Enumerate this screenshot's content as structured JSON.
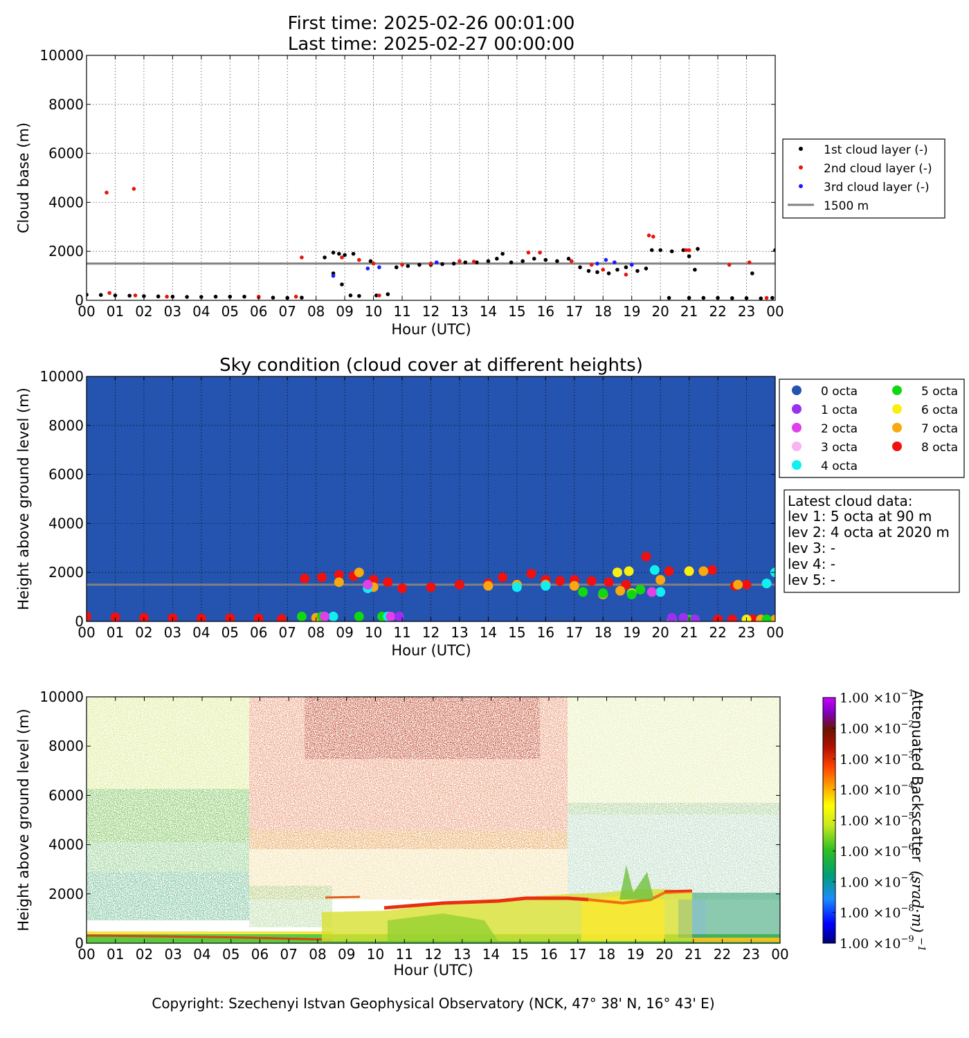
{
  "header": {
    "line1": "First time: 2025-02-26 00:01:00",
    "line2": "Last time: 2025-02-27 00:00:00"
  },
  "colors": {
    "layer1": "#000000",
    "layer2": "#e8140c",
    "layer3": "#1a1aff",
    "ref_line": "#808080",
    "sky_background": "#2453b0"
  },
  "panel1": {
    "ylabel": "Cloud base (m)",
    "xlabel": "Hour (UTC)",
    "legend": [
      "1st cloud layer (-)",
      "2nd cloud layer (-)",
      "3rd cloud layer (-)",
      "1500 m"
    ]
  },
  "panel2": {
    "title": "Sky condition (cloud cover at different heights)",
    "ylabel": "Height above ground level (m)",
    "xlabel": "Hour (UTC)",
    "legend": [
      {
        "label": "0 octa",
        "color": "#2453b0"
      },
      {
        "label": "1 octa",
        "color": "#9b30f0"
      },
      {
        "label": "2 octa",
        "color": "#e040e8"
      },
      {
        "label": "3 octa",
        "color": "#f8b4f0"
      },
      {
        "label": "4 octa",
        "color": "#10f0f0"
      },
      {
        "label": "5 octa",
        "color": "#10d810"
      },
      {
        "label": "6 octa",
        "color": "#f8f010"
      },
      {
        "label": "7 octa",
        "color": "#f8a810"
      },
      {
        "label": "8 octa",
        "color": "#f01010"
      }
    ],
    "latest": {
      "title": "Latest cloud data:",
      "lines": [
        "lev 1: 5 octa at 90 m",
        "lev 2: 4 octa at 2020 m",
        "lev 3: -",
        "lev 4: -",
        "lev 5: -"
      ]
    }
  },
  "panel3": {
    "ylabel": "Height above ground level (m)",
    "xlabel": "Hour (UTC)",
    "colorbar_label": "Attenuated Backscatter",
    "colorbar_unit_base": "(srad·m)",
    "colorbar_unit_exp": "−1",
    "colorbar_ticks": [
      {
        "mant": "1.00",
        "exp": "−1"
      },
      {
        "mant": "1.00",
        "exp": "−2"
      },
      {
        "mant": "1.00",
        "exp": "−3"
      },
      {
        "mant": "1.00",
        "exp": "−4"
      },
      {
        "mant": "1.00",
        "exp": "−5"
      },
      {
        "mant": "1.00",
        "exp": "−6"
      },
      {
        "mant": "1.00",
        "exp": "−7"
      },
      {
        "mant": "1.00",
        "exp": "−8"
      },
      {
        "mant": "1.00",
        "exp": "−9"
      }
    ]
  },
  "footer": {
    "copyright": "Copyright: Szechenyi Istvan Geophysical Observatory (NCK, 47° 38' N, 16° 43' E)"
  },
  "chart_data": [
    {
      "type": "scatter",
      "title": "",
      "xlabel": "Hour (UTC)",
      "ylabel": "Cloud base (m)",
      "xlim": [
        0,
        24
      ],
      "ylim": [
        0,
        10000
      ],
      "x_tick_labels": [
        "00",
        "01",
        "02",
        "03",
        "04",
        "05",
        "06",
        "07",
        "08",
        "09",
        "10",
        "11",
        "12",
        "13",
        "14",
        "15",
        "16",
        "17",
        "18",
        "19",
        "20",
        "21",
        "22",
        "23",
        "00"
      ],
      "y_ticks": [
        0,
        2000,
        4000,
        6000,
        8000,
        10000
      ],
      "grid": true,
      "legend_position": "right",
      "reference_line": {
        "name": "1500 m",
        "y": 1500
      },
      "series": [
        {
          "name": "1st cloud layer (-)",
          "points": [
            [
              0.0,
              230
            ],
            [
              0.5,
              220
            ],
            [
              1.0,
              200
            ],
            [
              1.5,
              190
            ],
            [
              2.0,
              170
            ],
            [
              2.5,
              160
            ],
            [
              3.0,
              150
            ],
            [
              3.5,
              140
            ],
            [
              4.0,
              140
            ],
            [
              4.5,
              150
            ],
            [
              5.0,
              150
            ],
            [
              5.5,
              150
            ],
            [
              6.0,
              130
            ],
            [
              6.5,
              110
            ],
            [
              7.0,
              100
            ],
            [
              7.5,
              110
            ],
            [
              8.3,
              1750
            ],
            [
              8.6,
              1950
            ],
            [
              8.8,
              1900
            ],
            [
              9.0,
              1850
            ],
            [
              9.3,
              1900
            ],
            [
              8.6,
              1100
            ],
            [
              8.9,
              650
            ],
            [
              9.2,
              200
            ],
            [
              9.5,
              180
            ],
            [
              9.9,
              1600
            ],
            [
              10.1,
              200
            ],
            [
              10.5,
              250
            ],
            [
              10.8,
              1350
            ],
            [
              11.2,
              1400
            ],
            [
              11.6,
              1450
            ],
            [
              12.0,
              1450
            ],
            [
              12.4,
              1480
            ],
            [
              12.8,
              1500
            ],
            [
              13.2,
              1550
            ],
            [
              13.6,
              1550
            ],
            [
              14.0,
              1600
            ],
            [
              14.3,
              1700
            ],
            [
              14.5,
              1900
            ],
            [
              14.8,
              1550
            ],
            [
              15.2,
              1600
            ],
            [
              15.6,
              1700
            ],
            [
              16.0,
              1650
            ],
            [
              16.4,
              1600
            ],
            [
              16.8,
              1700
            ],
            [
              17.2,
              1350
            ],
            [
              17.5,
              1200
            ],
            [
              17.8,
              1150
            ],
            [
              18.2,
              1100
            ],
            [
              18.5,
              1250
            ],
            [
              18.8,
              1350
            ],
            [
              19.2,
              1200
            ],
            [
              19.5,
              1300
            ],
            [
              19.7,
              2050
            ],
            [
              20.0,
              2050
            ],
            [
              20.4,
              2000
            ],
            [
              20.8,
              2050
            ],
            [
              21.0,
              1800
            ],
            [
              21.3,
              2100
            ],
            [
              21.2,
              1250
            ],
            [
              20.3,
              100
            ],
            [
              21.0,
              100
            ],
            [
              21.5,
              100
            ],
            [
              22.0,
              100
            ],
            [
              22.5,
              90
            ],
            [
              23.0,
              90
            ],
            [
              23.2,
              1100
            ],
            [
              23.5,
              80
            ],
            [
              23.9,
              100
            ],
            [
              24.0,
              2050
            ]
          ]
        },
        {
          "name": "2nd cloud layer (-)",
          "points": [
            [
              0.7,
              4400
            ],
            [
              1.65,
              4550
            ],
            [
              0.8,
              300
            ],
            [
              1.7,
              200
            ],
            [
              2.8,
              150
            ],
            [
              6.0,
              150
            ],
            [
              7.3,
              150
            ],
            [
              7.5,
              1750
            ],
            [
              8.9,
              1750
            ],
            [
              9.5,
              1650
            ],
            [
              10.0,
              1500
            ],
            [
              10.2,
              200
            ],
            [
              11.0,
              1450
            ],
            [
              12.0,
              1500
            ],
            [
              13.0,
              1600
            ],
            [
              13.5,
              1580
            ],
            [
              15.4,
              1950
            ],
            [
              15.8,
              1950
            ],
            [
              16.9,
              1600
            ],
            [
              17.6,
              1450
            ],
            [
              18.0,
              1250
            ],
            [
              18.8,
              1050
            ],
            [
              19.6,
              2650
            ],
            [
              19.75,
              2600
            ],
            [
              20.9,
              2050
            ],
            [
              21.0,
              2050
            ],
            [
              22.4,
              1450
            ],
            [
              23.1,
              1550
            ],
            [
              23.7,
              100
            ]
          ]
        },
        {
          "name": "3rd cloud layer (-)",
          "points": [
            [
              8.6,
              1000
            ],
            [
              9.8,
              1300
            ],
            [
              10.2,
              1350
            ],
            [
              12.2,
              1550
            ],
            [
              17.8,
              1500
            ],
            [
              18.1,
              1650
            ],
            [
              18.4,
              1550
            ],
            [
              19.0,
              1450
            ]
          ]
        }
      ]
    },
    {
      "type": "scatter",
      "title": "Sky condition (cloud cover at different heights)",
      "xlabel": "Hour (UTC)",
      "ylabel": "Height above ground level (m)",
      "xlim": [
        0,
        24
      ],
      "ylim": [
        0,
        10000
      ],
      "x_tick_labels": [
        "00",
        "01",
        "02",
        "03",
        "04",
        "05",
        "06",
        "07",
        "08",
        "09",
        "10",
        "11",
        "12",
        "13",
        "14",
        "15",
        "16",
        "17",
        "18",
        "19",
        "20",
        "21",
        "22",
        "23",
        "00"
      ],
      "y_ticks": [
        0,
        2000,
        4000,
        6000,
        8000,
        10000
      ],
      "grid": true,
      "legend_position": "right",
      "reference_line": {
        "y": 1500
      },
      "background_octa": 0,
      "series": [
        {
          "name": "8 octa",
          "points": [
            [
              0.0,
              200
            ],
            [
              1.0,
              170
            ],
            [
              2.0,
              150
            ],
            [
              3.0,
              130
            ],
            [
              4.0,
              120
            ],
            [
              5.0,
              130
            ],
            [
              6.0,
              120
            ],
            [
              6.8,
              100
            ],
            [
              7.6,
              1750
            ],
            [
              8.2,
              1800
            ],
            [
              8.8,
              1900
            ],
            [
              9.3,
              1850
            ],
            [
              10.0,
              1700
            ],
            [
              10.5,
              1600
            ],
            [
              11.0,
              1350
            ],
            [
              12.0,
              1400
            ],
            [
              13.0,
              1500
            ],
            [
              14.0,
              1550
            ],
            [
              14.5,
              1800
            ],
            [
              15.5,
              1950
            ],
            [
              16.0,
              1700
            ],
            [
              16.5,
              1650
            ],
            [
              17.0,
              1700
            ],
            [
              17.6,
              1650
            ],
            [
              18.2,
              1600
            ],
            [
              18.8,
              1500
            ],
            [
              19.5,
              2650
            ],
            [
              20.3,
              2050
            ],
            [
              21.0,
              2050
            ],
            [
              21.8,
              2100
            ],
            [
              22.0,
              80
            ],
            [
              22.5,
              80
            ],
            [
              22.6,
              1450
            ],
            [
              23.0,
              1500
            ],
            [
              23.2,
              100
            ]
          ]
        },
        {
          "name": "7 octa",
          "points": [
            [
              8.0,
              150
            ],
            [
              8.8,
              1600
            ],
            [
              9.5,
              2000
            ],
            [
              10.0,
              1400
            ],
            [
              14.0,
              1450
            ],
            [
              15.0,
              1500
            ],
            [
              16.0,
              1500
            ],
            [
              17.0,
              1450
            ],
            [
              18.0,
              1100
            ],
            [
              18.6,
              1250
            ],
            [
              19.3,
              1300
            ],
            [
              20.0,
              1700
            ],
            [
              20.4,
              80
            ],
            [
              21.2,
              80
            ],
            [
              21.5,
              2050
            ],
            [
              22.7,
              1500
            ],
            [
              23.5,
              80
            ],
            [
              24.0,
              80
            ]
          ]
        },
        {
          "name": "6 octa",
          "points": [
            [
              18.5,
              2000
            ],
            [
              18.9,
              2050
            ],
            [
              19.0,
              1150
            ],
            [
              21.0,
              2050
            ],
            [
              23.0,
              80
            ]
          ]
        },
        {
          "name": "5 octa",
          "points": [
            [
              7.5,
              200
            ],
            [
              8.2,
              200
            ],
            [
              9.5,
              200
            ],
            [
              10.3,
              200
            ],
            [
              17.3,
              1200
            ],
            [
              18.0,
              1150
            ],
            [
              19.0,
              1100
            ],
            [
              19.3,
              1300
            ],
            [
              21.0,
              80
            ],
            [
              23.7,
              80
            ]
          ]
        },
        {
          "name": "4 octa",
          "points": [
            [
              8.6,
              200
            ],
            [
              9.8,
              1350
            ],
            [
              10.5,
              200
            ],
            [
              15.0,
              1400
            ],
            [
              16.0,
              1450
            ],
            [
              19.8,
              2100
            ],
            [
              20.0,
              1200
            ],
            [
              23.7,
              1550
            ],
            [
              24.0,
              2000
            ]
          ]
        },
        {
          "name": "2 octa",
          "points": [
            [
              8.3,
              200
            ],
            [
              9.8,
              1500
            ],
            [
              10.6,
              200
            ],
            [
              19.7,
              1200
            ]
          ]
        },
        {
          "name": "1 octa",
          "points": [
            [
              10.9,
              200
            ],
            [
              20.4,
              150
            ],
            [
              20.8,
              150
            ],
            [
              21.2,
              80
            ]
          ]
        }
      ]
    },
    {
      "type": "heatmap",
      "title": "",
      "xlabel": "Hour (UTC)",
      "ylabel": "Height above ground level (m)",
      "xlim": [
        0,
        24
      ],
      "ylim": [
        0,
        10000
      ],
      "x_tick_labels": [
        "00",
        "01",
        "02",
        "03",
        "04",
        "05",
        "06",
        "07",
        "08",
        "09",
        "10",
        "11",
        "12",
        "13",
        "14",
        "15",
        "16",
        "17",
        "18",
        "19",
        "20",
        "21",
        "22",
        "23",
        "00"
      ],
      "y_ticks": [
        0,
        2000,
        4000,
        6000,
        8000,
        10000
      ],
      "colorbar": {
        "label": "Attenuated Backscatter (srad·m)^-1",
        "scale": "log",
        "range": [
          1e-09,
          0.1
        ]
      }
    }
  ]
}
